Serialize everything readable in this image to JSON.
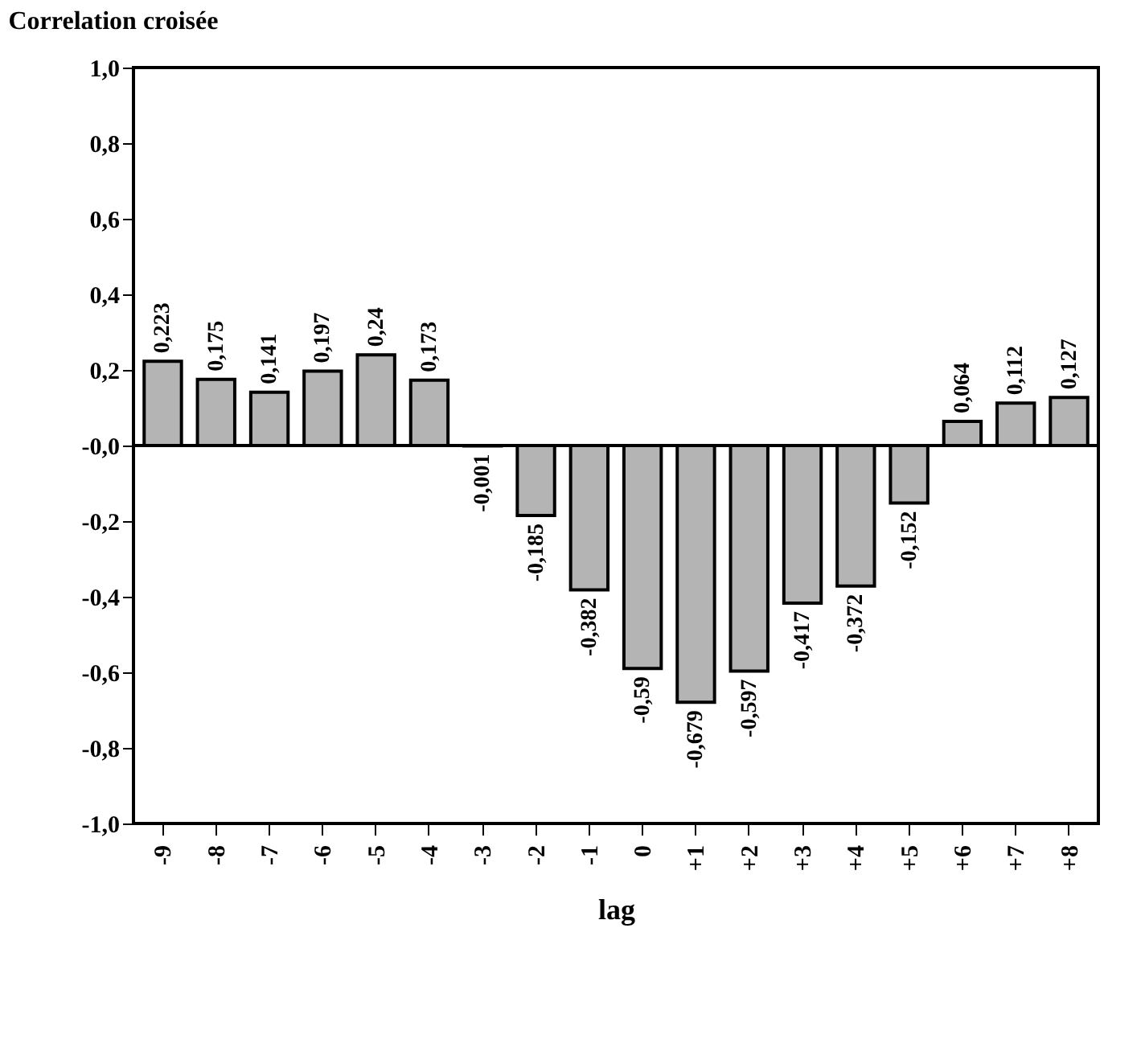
{
  "chart_data": {
    "type": "bar",
    "title": "Correlation croisée",
    "xlabel": "lag",
    "categories": [
      "-9",
      "-8",
      "-7",
      "-6",
      "-5",
      "-4",
      "-3",
      "-2",
      "-1",
      "0",
      "+1",
      "+2",
      "+3",
      "+4",
      "+5",
      "+6",
      "+7",
      "+8"
    ],
    "values": [
      0.223,
      0.175,
      0.141,
      0.197,
      0.24,
      0.173,
      -0.001,
      -0.185,
      -0.382,
      -0.59,
      -0.679,
      -0.597,
      -0.417,
      -0.372,
      -0.152,
      0.064,
      0.112,
      0.127
    ],
    "value_labels": [
      "0,223",
      "0,175",
      "0,141",
      "0,197",
      "0,24",
      "0,173",
      "-0,001",
      "-0,185",
      "-0,382",
      "-0,59",
      "-0,679",
      "-0,597",
      "-0,417",
      "-0,372",
      "-0,152",
      "0,064",
      "0,112",
      "0,127"
    ],
    "color": "#b4b4b4",
    "ylim": [
      -1.0,
      1.0
    ],
    "yticks": [
      {
        "value": 1.0,
        "label": "1,0"
      },
      {
        "value": 0.8,
        "label": "0,8"
      },
      {
        "value": 0.6,
        "label": "0,6"
      },
      {
        "value": 0.4,
        "label": "0,4"
      },
      {
        "value": 0.2,
        "label": "0,2"
      },
      {
        "value": 0.0,
        "label": "-0,0"
      },
      {
        "value": -0.2,
        "label": "-0,2"
      },
      {
        "value": -0.4,
        "label": "-0,4"
      },
      {
        "value": -0.6,
        "label": "-0,6"
      },
      {
        "value": -0.8,
        "label": "-0,8"
      },
      {
        "value": -1.0,
        "label": "-1,0"
      }
    ],
    "orientation": "vertical"
  }
}
